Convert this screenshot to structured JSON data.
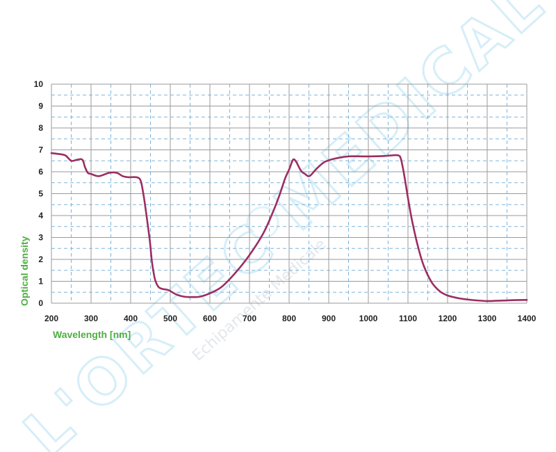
{
  "chart_data": {
    "type": "line",
    "xlabel": "Wavelength [nm]",
    "ylabel": "Optical density",
    "xlim": [
      200,
      1400
    ],
    "ylim": [
      0,
      10
    ],
    "x_ticks": [
      200,
      300,
      400,
      500,
      600,
      700,
      800,
      900,
      1000,
      1100,
      1200,
      1300,
      1400
    ],
    "y_ticks": [
      0,
      1,
      2,
      3,
      4,
      5,
      6,
      7,
      8,
      9,
      10
    ],
    "x_minor_gridlines": [
      250,
      350,
      450,
      550,
      650,
      750,
      850,
      950,
      1050,
      1150,
      1250,
      1350
    ],
    "y_minor_gridlines": [
      0.5,
      1.5,
      2.5,
      3.5,
      4.5,
      5.5,
      6.5,
      7.5,
      8.5,
      9.5
    ],
    "grid": true,
    "legend": "none",
    "colors": {
      "line": "#9b2d62",
      "axis_title": "#4caf3f",
      "major_grid": "#9a9a9a",
      "minor_grid": "#7fb3d9",
      "watermark": "#d6eef8"
    },
    "series": [
      {
        "x": [
          200,
          215,
          235,
          250,
          265,
          278,
          285,
          292,
          300,
          320,
          345,
          365,
          380,
          395,
          415,
          425,
          432,
          440,
          448,
          453,
          457,
          462,
          470,
          480,
          495,
          515,
          535,
          555,
          575,
          600,
          630,
          665,
          700,
          735,
          760,
          775,
          790,
          800,
          810,
          818,
          825,
          832,
          840,
          848,
          855,
          870,
          890,
          915,
          950,
          1000,
          1040,
          1060,
          1075,
          1082,
          1090,
          1100,
          1110,
          1125,
          1140,
          1160,
          1180,
          1200,
          1230,
          1260,
          1300,
          1340,
          1370,
          1400
        ],
        "y": [
          6.85,
          6.82,
          6.75,
          6.5,
          6.55,
          6.55,
          6.2,
          5.95,
          5.9,
          5.8,
          5.95,
          5.95,
          5.8,
          5.75,
          5.75,
          5.6,
          5.0,
          4.0,
          2.9,
          2.0,
          1.5,
          1.05,
          0.75,
          0.65,
          0.6,
          0.4,
          0.3,
          0.28,
          0.3,
          0.45,
          0.75,
          1.4,
          2.2,
          3.2,
          4.2,
          4.9,
          5.7,
          6.1,
          6.55,
          6.45,
          6.2,
          6.0,
          5.9,
          5.8,
          5.85,
          6.15,
          6.45,
          6.6,
          6.7,
          6.7,
          6.72,
          6.75,
          6.75,
          6.6,
          5.9,
          4.8,
          3.8,
          2.6,
          1.7,
          0.95,
          0.55,
          0.35,
          0.22,
          0.15,
          0.1,
          0.12,
          0.14,
          0.15
        ]
      }
    ]
  },
  "watermark": {
    "large": "L'ORTEC MEDICAL",
    "small": "Echipamente Medicale"
  }
}
